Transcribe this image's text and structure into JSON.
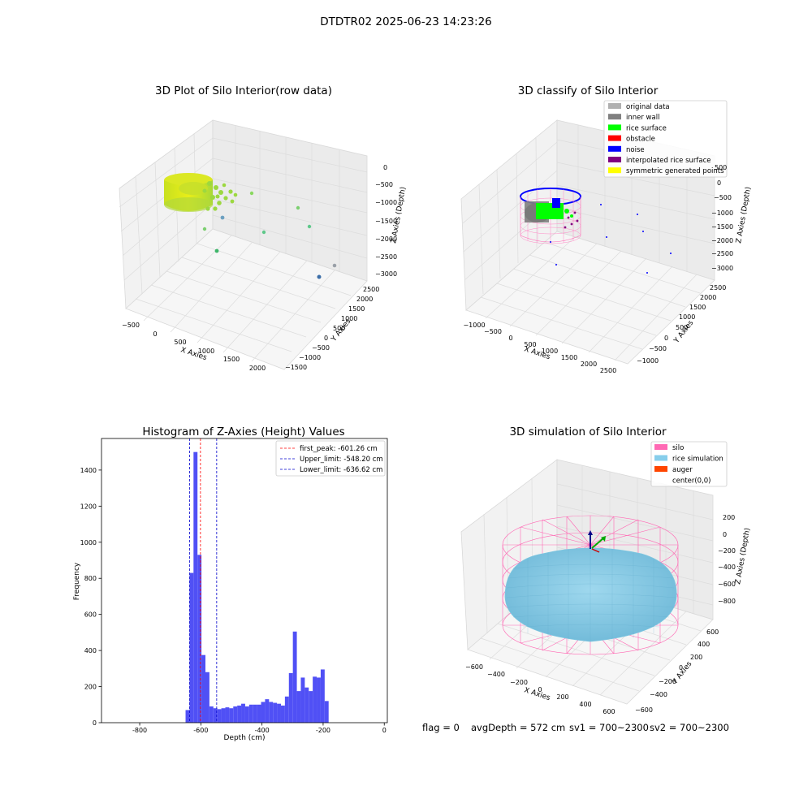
{
  "figure": {
    "suptitle": "DTDTR02 2025-06-23 14:23:26",
    "footer": {
      "flag": "flag = 0",
      "avg": "avgDepth = 572 cm",
      "sv1": "sv1 = 700~2300",
      "sv2": "sv2 = 700~2300"
    }
  },
  "panels": {
    "raw": {
      "title": "3D Plot of Silo Interior(row data)",
      "xlabel": "X Axies",
      "ylabel": "Y Axies",
      "zlabel": "Z Axies (Depth)",
      "xticks": [
        "−500",
        "0",
        "500",
        "1000",
        "1500",
        "2000"
      ],
      "yticks": [
        "−1500",
        "−1000",
        "−500",
        "0",
        "500",
        "1000",
        "1500",
        "2000",
        "2500"
      ],
      "zticks": [
        "0",
        "−500",
        "−1000",
        "−1500",
        "−2000",
        "−2500",
        "−3000"
      ]
    },
    "classify": {
      "title": "3D classify of Silo Interior",
      "xlabel": "X Axies",
      "ylabel": "Y Axies",
      "zlabel": "Z Axies (Depth)",
      "xticks": [
        "−1000",
        "−500",
        "0",
        "500",
        "1000",
        "1500",
        "2000",
        "2500"
      ],
      "yticks": [
        "−1000",
        "−500",
        "0",
        "500",
        "1000",
        "1500",
        "2000",
        "2500"
      ],
      "zticks": [
        "500",
        "0",
        "−500",
        "−1000",
        "−1500",
        "−2000",
        "−2500",
        "−3000"
      ],
      "legend": [
        {
          "label": "original data",
          "color": "#b0b0b0"
        },
        {
          "label": "inner wall",
          "color": "#808080"
        },
        {
          "label": "rice surface",
          "color": "#00ff00"
        },
        {
          "label": "obstacle",
          "color": "#ff0000"
        },
        {
          "label": "noise",
          "color": "#0000ff"
        },
        {
          "label": "interpolated rice surface",
          "color": "#800080"
        },
        {
          "label": "symmetric generated points",
          "color": "#ffff00"
        }
      ]
    },
    "simulation": {
      "title": "3D simulation of Silo Interior",
      "xlabel": "X Axies",
      "ylabel": "Y Axies",
      "zlabel": "Z Axies (Depth)",
      "xticks": [
        "−600",
        "−400",
        "−200",
        "0",
        "200",
        "400",
        "600"
      ],
      "yticks": [
        "−600",
        "−400",
        "−200",
        "0",
        "200",
        "400",
        "600"
      ],
      "zticks": [
        "200",
        "0",
        "−200",
        "−400",
        "−600",
        "−800"
      ],
      "legend": [
        {
          "label": "silo",
          "color": "#ff69b4"
        },
        {
          "label": "rice simulation",
          "color": "#87ceeb"
        },
        {
          "label": "auger",
          "color": "#ff4500"
        },
        {
          "label": "center(0,0)",
          "color": "#ffffff"
        }
      ]
    }
  },
  "chart_data": {
    "type": "bar",
    "title": "Histogram of Z-Axies (Height) Values",
    "xlabel": "Depth (cm)",
    "ylabel": "Frequency",
    "xlim": [
      -925,
      10
    ],
    "ylim": [
      0,
      1575
    ],
    "xticks": [
      -800,
      -600,
      -400,
      -200,
      0
    ],
    "yticks": [
      0,
      200,
      400,
      600,
      800,
      1000,
      1200,
      1400
    ],
    "bar_color": "#5050f5",
    "bin_start": -650,
    "bin_width": 13,
    "values": [
      70,
      830,
      1500,
      930,
      375,
      280,
      90,
      80,
      75,
      80,
      85,
      80,
      90,
      95,
      105,
      90,
      100,
      100,
      100,
      115,
      130,
      115,
      110,
      105,
      95,
      145,
      275,
      505,
      175,
      250,
      195,
      175,
      255,
      250,
      295,
      120
    ],
    "vlines": [
      {
        "label": "first_peak: -601.26 cm",
        "x": -601.26,
        "color": "#ff0000"
      },
      {
        "label": "Upper_limit: -548.20 cm",
        "x": -548.2,
        "color": "#0000cc"
      },
      {
        "label": "Lower_limit: -636.62 cm",
        "x": -636.62,
        "color": "#0000cc"
      }
    ],
    "legend_position": "top-right"
  }
}
